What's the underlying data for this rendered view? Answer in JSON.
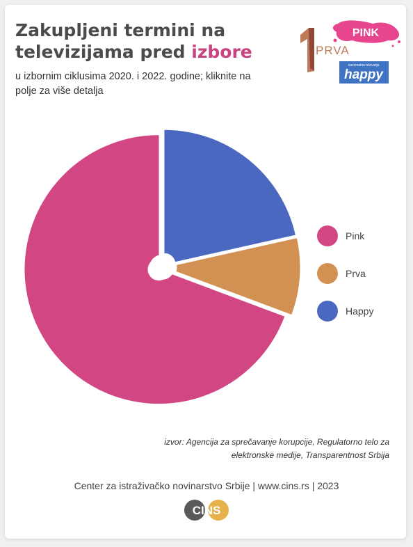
{
  "header": {
    "title_part1": "Zakupljeni termini na televizijama pred ",
    "title_highlight": "izbore",
    "subtitle": "u izbornim ciklusima 2020. i 2022. godine; kliknite na polje za više detalja"
  },
  "logos": {
    "pink": "PINK",
    "prva": "PRVA",
    "happy": "happy",
    "happy_tagline": "nacionalna televizija"
  },
  "chart_data": {
    "type": "pie",
    "categories": [
      "Pink",
      "Prva",
      "Happy"
    ],
    "values": [
      69.3,
      9.2,
      21.5
    ],
    "colors": [
      "#d24684",
      "#d39053",
      "#4b68c0"
    ],
    "legend_position": "right"
  },
  "source": "izvor: Agencija za sprečavanje korupcije, Regulatorno telo za elektronske medije, Transparentnost Srbija",
  "footer": {
    "text": "Center za istraživačko novinarstvo Srbije | www.cins.rs | 2023",
    "logo_letters": "CINS"
  }
}
